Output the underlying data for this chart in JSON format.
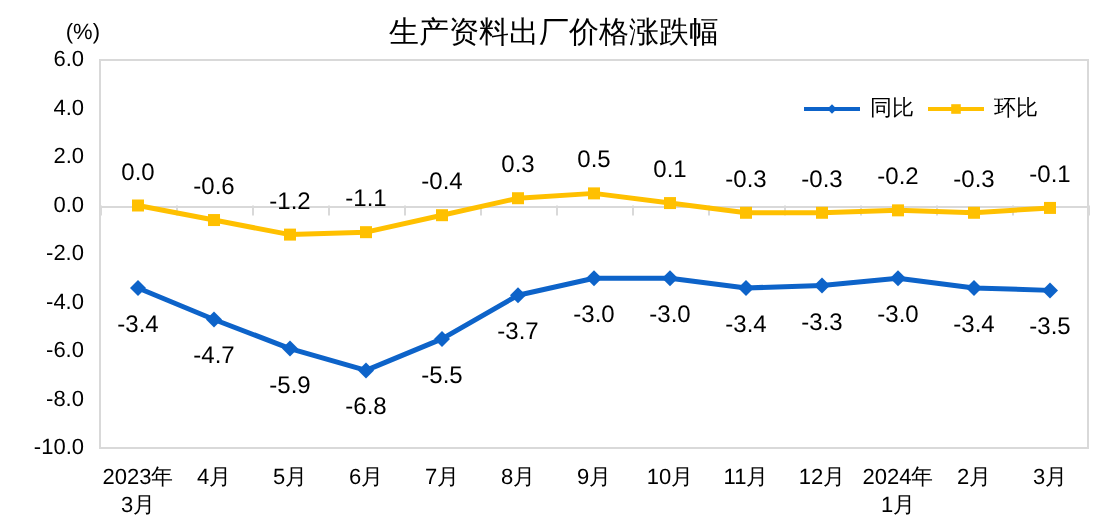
{
  "chart_data": {
    "type": "line",
    "title": "生产资料出厂价格涨跌幅",
    "ylabel": "(%)",
    "categories": [
      "2023年\n3月",
      "4月",
      "5月",
      "6月",
      "7月",
      "8月",
      "9月",
      "10月",
      "11月",
      "12月",
      "2024年\n1月",
      "2月",
      "3月"
    ],
    "series": [
      {
        "name": "同比",
        "color": "#0d63c9",
        "marker": "diamond",
        "values": [
          -3.4,
          -4.7,
          -5.9,
          -6.8,
          -5.5,
          -3.7,
          -3.0,
          -3.0,
          -3.4,
          -3.3,
          -3.0,
          -3.4,
          -3.5
        ],
        "value_labels": [
          "-3.4",
          "-4.7",
          "-5.9",
          "-6.8",
          "-5.5",
          "-3.7",
          "-3.0",
          "-3.0",
          "-3.4",
          "-3.3",
          "-3.0",
          "-3.4",
          "-3.5"
        ]
      },
      {
        "name": "环比",
        "color": "#ffc000",
        "marker": "square",
        "values": [
          0.0,
          -0.6,
          -1.2,
          -1.1,
          -0.4,
          0.3,
          0.5,
          0.1,
          -0.3,
          -0.3,
          -0.2,
          -0.3,
          -0.1
        ],
        "value_labels": [
          "0.0",
          "-0.6",
          "-1.2",
          "-1.1",
          "-0.4",
          "0.3",
          "0.5",
          "0.1",
          "-0.3",
          "-0.3",
          "-0.2",
          "-0.3",
          "-0.1"
        ]
      }
    ],
    "ylim": [
      -10,
      6
    ],
    "yticks": [
      {
        "value": -10,
        "label": "-10.0"
      },
      {
        "value": -8,
        "label": "-8.0"
      },
      {
        "value": -6,
        "label": "-6.0"
      },
      {
        "value": -4,
        "label": "-4.0"
      },
      {
        "value": -2,
        "label": "-2.0"
      },
      {
        "value": 0,
        "label": "0.0"
      },
      {
        "value": 2,
        "label": "2.0"
      },
      {
        "value": 4,
        "label": "4.0"
      },
      {
        "value": 6,
        "label": "6.0"
      }
    ],
    "legend": "top right"
  }
}
